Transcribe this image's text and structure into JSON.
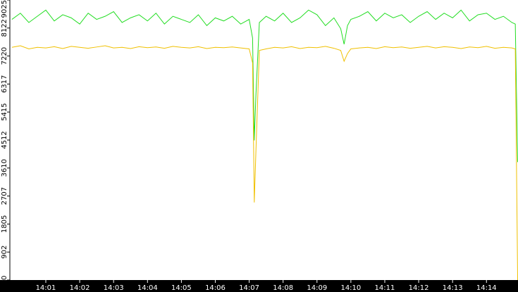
{
  "chart_data": {
    "type": "line",
    "x": [
      0,
      0.25,
      0.5,
      0.75,
      1,
      1.25,
      1.5,
      1.75,
      2,
      2.25,
      2.5,
      2.75,
      3,
      3.25,
      3.5,
      3.75,
      4,
      4.25,
      4.5,
      4.75,
      5,
      5.25,
      5.5,
      5.75,
      6,
      6.25,
      6.5,
      6.75,
      7,
      7.1,
      7.15,
      7.2,
      7.3,
      7.5,
      7.75,
      8,
      8.25,
      8.5,
      8.75,
      9,
      9.25,
      9.5,
      9.7,
      9.8,
      9.9,
      10,
      10.25,
      10.5,
      10.75,
      11,
      11.25,
      11.5,
      11.75,
      12,
      12.25,
      12.5,
      12.75,
      13,
      13.25,
      13.5,
      13.75,
      14,
      14.25,
      14.5,
      14.75,
      14.85,
      14.92
    ],
    "series": [
      {
        "color": "#22dd22",
        "values": [
          8400,
          8600,
          8300,
          8500,
          8700,
          8350,
          8550,
          8450,
          8250,
          8600,
          8400,
          8500,
          8650,
          8300,
          8450,
          8550,
          8350,
          8600,
          8250,
          8500,
          8400,
          8300,
          8550,
          8200,
          8450,
          8350,
          8500,
          8250,
          8400,
          7800,
          4500,
          6000,
          8300,
          8500,
          8350,
          8600,
          8300,
          8450,
          8700,
          8550,
          8200,
          8450,
          8100,
          7600,
          8200,
          8400,
          8500,
          8650,
          8350,
          8600,
          8450,
          8550,
          8300,
          8500,
          8650,
          8400,
          8600,
          8450,
          8700,
          8350,
          8550,
          8600,
          8400,
          8500,
          8300,
          8250,
          3800
        ]
      },
      {
        "color": "#f0c000",
        "values": [
          7500,
          7550,
          7450,
          7500,
          7480,
          7520,
          7460,
          7530,
          7500,
          7470,
          7510,
          7550,
          7480,
          7500,
          7460,
          7520,
          7490,
          7510,
          7470,
          7530,
          7500,
          7480,
          7520,
          7460,
          7500,
          7490,
          7510,
          7480,
          7450,
          7000,
          2500,
          4200,
          7400,
          7450,
          7500,
          7480,
          7520,
          7460,
          7500,
          7490,
          7530,
          7470,
          7400,
          7050,
          7300,
          7450,
          7480,
          7500,
          7460,
          7520,
          7490,
          7510,
          7470,
          7500,
          7530,
          7480,
          7520,
          7500,
          7460,
          7510,
          7490,
          7530,
          7470,
          7500,
          7480,
          7450,
          0
        ]
      }
    ],
    "xlim": [
      -0.06,
      14.93
    ],
    "xticks": [
      {
        "value": 1,
        "label": "14:01"
      },
      {
        "value": 2,
        "label": "14:02"
      },
      {
        "value": 3,
        "label": "14:03"
      },
      {
        "value": 4,
        "label": "14:04"
      },
      {
        "value": 5,
        "label": "14:05"
      },
      {
        "value": 6,
        "label": "14:06"
      },
      {
        "value": 7,
        "label": "14:07"
      },
      {
        "value": 8,
        "label": "14:08"
      },
      {
        "value": 9,
        "label": "14:09"
      },
      {
        "value": 10,
        "label": "14:10"
      },
      {
        "value": 11,
        "label": "14:11"
      },
      {
        "value": 12,
        "label": "14:12"
      },
      {
        "value": 13,
        "label": "14:13"
      },
      {
        "value": 14,
        "label": "14:14"
      }
    ],
    "ylim": [
      0,
      9025
    ],
    "yticks": [
      0,
      902,
      1805,
      2707,
      3610,
      4512,
      5415,
      6317,
      7220,
      8122,
      9025
    ]
  }
}
